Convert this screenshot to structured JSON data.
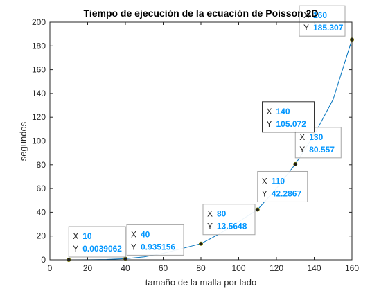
{
  "chart_data": {
    "type": "line",
    "title": "Tiempo de ejecución de la ecuación de Poisson 2D",
    "xlabel": "tamaño de la malla por lado",
    "ylabel": "segundos",
    "xlim": [
      0,
      160
    ],
    "ylim": [
      0,
      200
    ],
    "xticks": [
      0,
      20,
      40,
      60,
      80,
      100,
      120,
      140,
      160
    ],
    "yticks": [
      0,
      20,
      40,
      60,
      80,
      100,
      120,
      140,
      160,
      180,
      200
    ],
    "grid": false,
    "series": [
      {
        "x": [
          10,
          20,
          30,
          40,
          50,
          60,
          70,
          80,
          90,
          100,
          110,
          120,
          130,
          140,
          150,
          160
        ],
        "y": [
          0.0039062,
          0.05,
          0.3,
          0.935156,
          2.5,
          5.5,
          9.5,
          13.5648,
          22.0,
          32.0,
          42.2867,
          60.0,
          80.557,
          105.072,
          135.0,
          185.307
        ],
        "color": "#0072bd"
      }
    ],
    "datatips": [
      {
        "x_label": "X",
        "y_label": "Y",
        "x_text": "10",
        "y_text": "0.0039062",
        "selected": false
      },
      {
        "x_label": "X",
        "y_label": "Y",
        "x_text": "40",
        "y_text": "0.935156",
        "selected": false
      },
      {
        "x_label": "X",
        "y_label": "Y",
        "x_text": "80",
        "y_text": "13.5648",
        "selected": false
      },
      {
        "x_label": "X",
        "y_label": "Y",
        "x_text": "110",
        "y_text": "42.2867",
        "selected": false
      },
      {
        "x_label": "X",
        "y_label": "Y",
        "x_text": "130",
        "y_text": "80.557",
        "selected": false
      },
      {
        "x_label": "X",
        "y_label": "Y",
        "x_text": "140",
        "y_text": "105.072",
        "selected": true
      },
      {
        "x_label": "X",
        "y_label": "Y",
        "x_text": "160",
        "y_text": "185.307",
        "selected": false
      }
    ],
    "datatip_points": [
      {
        "x": 10,
        "y": 0.0039062
      },
      {
        "x": 40,
        "y": 0.935156
      },
      {
        "x": 80,
        "y": 13.5648
      },
      {
        "x": 110,
        "y": 42.2867
      },
      {
        "x": 130,
        "y": 80.557
      },
      {
        "x": 140,
        "y": 105.072
      },
      {
        "x": 160,
        "y": 185.307
      }
    ],
    "datatip_value_color": "#0096ff"
  }
}
